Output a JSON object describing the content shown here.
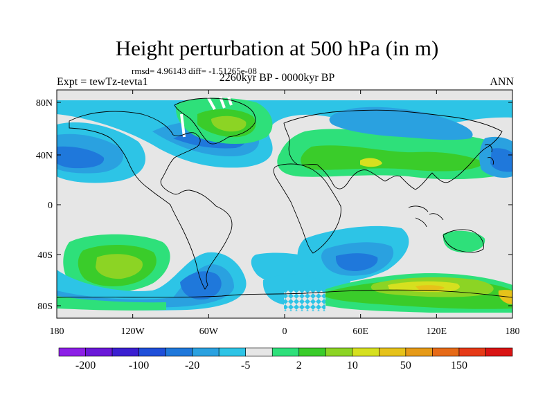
{
  "title": "Height perturbation at 500 hPa (in m)",
  "stats_text": "rmsd= 4.96143 diff= -1.51265e-08",
  "period": "2260kyr BP - 0000kyr BP",
  "experiment": "Expt = tewTz-tevta1",
  "season": "ANN",
  "lat_ticks": [
    "80N",
    "40N",
    "0",
    "40S",
    "80S"
  ],
  "lon_ticks": [
    "180",
    "120W",
    "60W",
    "0",
    "60E",
    "120E",
    "180"
  ],
  "colorbar": {
    "colors": [
      "#8c1fe6",
      "#6a18d8",
      "#3b1fd1",
      "#1f4fd9",
      "#1f78db",
      "#2aa1e0",
      "#2dc4e6",
      "#e6e6e6",
      "#2ee07a",
      "#3acc2a",
      "#8cd424",
      "#d6e01f",
      "#e6c21a",
      "#e69a17",
      "#e66a17",
      "#e63a17",
      "#d91414"
    ],
    "labels": [
      "-200",
      "-100",
      "-20",
      "-5",
      "2",
      "10",
      "50",
      "150"
    ]
  }
}
